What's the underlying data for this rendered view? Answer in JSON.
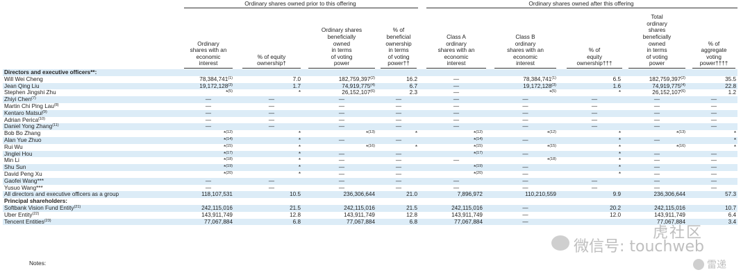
{
  "groups": {
    "prior": "Ordinary shares owned prior to this offering",
    "after": "Ordinary shares owned after this offering"
  },
  "col_headers": [
    "Ordinary\nshares with an\neconomic\ninterest",
    "% of equity\nownership†",
    "Ordinary shares\nbeneficially\nowned\nin terms\nof voting\npower",
    "% of\nbeneficial\nownership\nin terms\nof voting\npower††",
    "Class A\nordinary\nshares with an\neconomic\ninterest",
    "Class B\nordinary\nshares with an\neconomic\ninterest",
    "% of\nequity\nownership†††",
    "Total\nordinary\nshares\nbeneficially\nowned\nin terms\nof voting\npower",
    "% of\naggregate\nvoting\npower††††"
  ],
  "rows": [
    {
      "label": "Directors and executive officers**:",
      "section": true,
      "shade": true,
      "cells": []
    },
    {
      "label": "Will Wei Cheng",
      "cells": [
        "78,384,741<sup>(1)</sup>",
        "7.0",
        "182,759,397<sup>(2)</sup>",
        "16.2",
        "—",
        "78,384,741<sup>(1)</sup>",
        "6.5",
        "182,759,397<sup>(2)</sup>",
        "35.5"
      ]
    },
    {
      "label": "Jean Qing Liu",
      "shade": true,
      "cells": [
        "19,172,128<sup>(3)</sup>",
        "1.7",
        "74,919,775<sup>(4)</sup>",
        "6.7",
        "—",
        "19,172,128<sup>(3)</sup>",
        "1.6",
        "74,919,775<sup>(4)</sup>",
        "22.8"
      ]
    },
    {
      "label": "Stephen Jingshi Zhu",
      "cells": [
        "*<sup>(5)</sup>",
        "*",
        "26,152,107<sup>(6)</sup>",
        "2.3",
        "—",
        "*<sup>(5)</sup>",
        "*",
        "26,152,107<sup>(6)</sup>",
        "1.2"
      ]
    },
    {
      "label": "Zhiyi Chen<sup>(7)</sup>",
      "shade": true,
      "cells": [
        "—",
        "—",
        "—",
        "—",
        "—",
        "—",
        "—",
        "—",
        "—"
      ]
    },
    {
      "label": "Martin Chi Ping Lau<sup>(8)</sup>",
      "cells": [
        "—",
        "—",
        "—",
        "—",
        "—",
        "—",
        "—",
        "—",
        "—"
      ]
    },
    {
      "label": "Kentaro Matsui<sup>(9)</sup>",
      "shade": true,
      "cells": [
        "—",
        "—",
        "—",
        "—",
        "—",
        "—",
        "—",
        "—",
        "—"
      ]
    },
    {
      "label": "Adrian Perica<sup>(10)</sup>",
      "cells": [
        "—",
        "—",
        "—",
        "—",
        "—",
        "—",
        "—",
        "—",
        "—"
      ]
    },
    {
      "label": "Daniel Yong Zhang<sup>(11)</sup>",
      "shade": true,
      "cells": [
        "—",
        "—",
        "—",
        "—",
        "—",
        "—",
        "—",
        "—",
        "—"
      ]
    },
    {
      "label": "Bob Bo Zhang",
      "cells": [
        "*<sup>(12)</sup>",
        "*",
        "*<sup>(13)</sup>",
        "*",
        "*<sup>(12)</sup>",
        "*<sup>(12)</sup>",
        "*",
        "*<sup>(13)</sup>",
        "*"
      ]
    },
    {
      "label": "Alan Yue Zhuo",
      "shade": true,
      "cells": [
        "*<sup>(14)</sup>",
        "*",
        "—",
        "—",
        "*<sup>(14)</sup>",
        "—",
        "*",
        "—",
        "*"
      ]
    },
    {
      "label": "Rui Wu",
      "cells": [
        "*<sup>(15)</sup>",
        "*",
        "*<sup>(16)</sup>",
        "*",
        "*<sup>(15)</sup>",
        "*<sup>(15)</sup>",
        "*",
        "*<sup>(16)</sup>",
        "*"
      ]
    },
    {
      "label": "Jinglei Hou",
      "shade": true,
      "cells": [
        "*<sup>(17)</sup>",
        "*",
        "—",
        "—",
        "*<sup>(17)</sup>",
        "—",
        "*",
        "—",
        "—"
      ]
    },
    {
      "label": "Min Li",
      "cells": [
        "*<sup>(18)</sup>",
        "*",
        "—",
        "—",
        "—",
        "*<sup>(18)</sup>",
        "*",
        "—",
        "—"
      ]
    },
    {
      "label": "Shu Sun",
      "shade": true,
      "cells": [
        "*<sup>(19)</sup>",
        "*",
        "—",
        "—",
        "*<sup>(19)</sup>",
        "—",
        "*",
        "—",
        "—"
      ]
    },
    {
      "label": "David Peng Xu",
      "cells": [
        "*<sup>(20)</sup>",
        "*",
        "—",
        "—",
        "*<sup>(20)</sup>",
        "—",
        "*",
        "—",
        "—"
      ]
    },
    {
      "label": "Gaofei Wang***",
      "shade": true,
      "cells": [
        "—",
        "—",
        "—",
        "—",
        "—",
        "—",
        "—",
        "—",
        "—"
      ]
    },
    {
      "label": "Yusuo Wang***",
      "cells": [
        "—",
        "—",
        "—",
        "—",
        "—",
        "—",
        "—",
        "—",
        "—"
      ]
    },
    {
      "label": "All directors and executive officers as a group",
      "shade": true,
      "cells": [
        "118,107,531",
        "10.5",
        "236,306,644",
        "21.0",
        "7,896,972",
        "110,210,559",
        "9.9",
        "236,306,644",
        "57.3"
      ]
    },
    {
      "label": "Principal shareholders:",
      "section": true,
      "cells": []
    },
    {
      "label": "Softbank Vision Fund Entity<sup>(21)</sup>",
      "shade": true,
      "cells": [
        "242,115,016",
        "21.5",
        "242,115,016",
        "21.5",
        "242,115,016",
        "—",
        "20.2",
        "242,115,016",
        "10.7"
      ]
    },
    {
      "label": "Uber Entity<sup>(22)</sup>",
      "cells": [
        "143,911,749",
        "12.8",
        "143,911,749",
        "12.8",
        "143,911,749",
        "—",
        "12.0",
        "143,911,749",
        "6.4"
      ]
    },
    {
      "label": "Tencent Entities<sup>(23)</sup>",
      "shade": true,
      "cells": [
        "77,067,884",
        "6.8",
        "77,067,884",
        "6.8",
        "77,067,884",
        "—",
        "",
        "77,067,884",
        "3.4"
      ]
    }
  ],
  "notes_label": "Notes:",
  "watermarks": {
    "wechat": "微信号: touchweb",
    "brand_big": "虎社区",
    "brand_small": "雷递"
  }
}
